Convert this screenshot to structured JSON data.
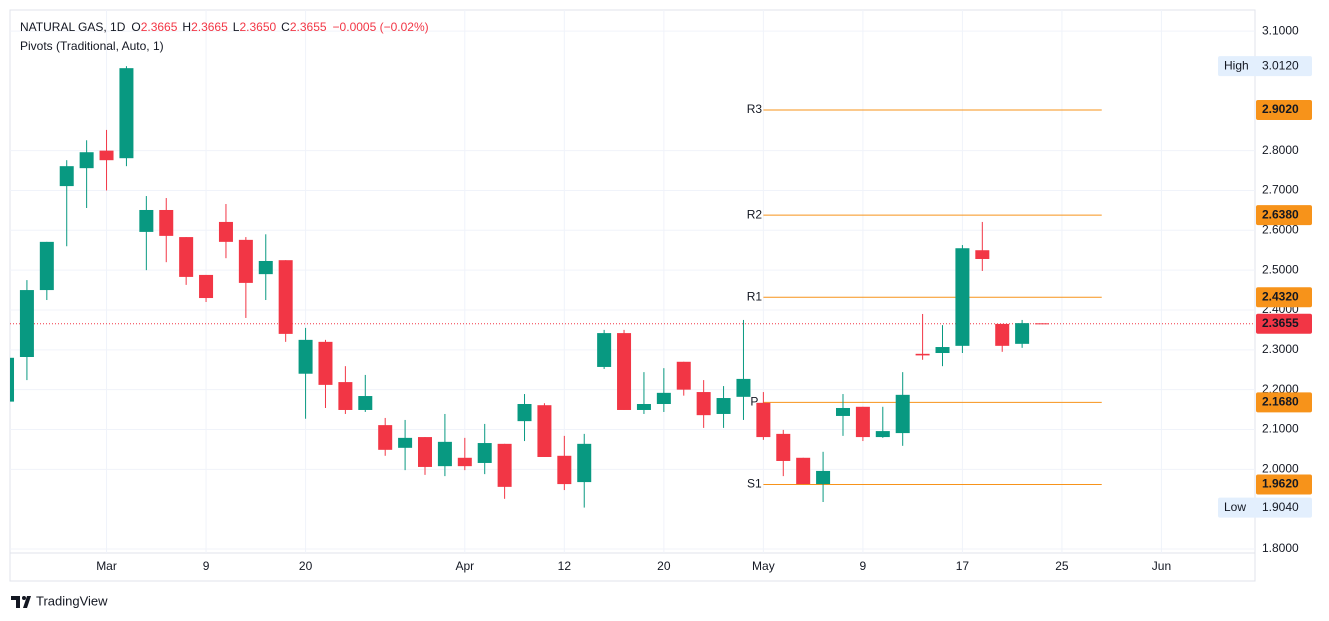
{
  "chart_data": {
    "type": "candlestick",
    "title": "NATURAL GAS, 1D",
    "ohlc_legend": [
      {
        "label": "O",
        "value": "2.3665"
      },
      {
        "label": "H",
        "value": "2.3665"
      },
      {
        "label": "L",
        "value": "2.3650"
      },
      {
        "label": "C",
        "value": "2.3655"
      }
    ],
    "change": "−0.0005 (−0.02%)",
    "indicator": "Pivots (Traditional, Auto, 1)",
    "up_color": "#089981",
    "down_color": "#f23645",
    "open": [
      2.17,
      2.282,
      2.45,
      2.711,
      2.756,
      2.8,
      2.781,
      2.596,
      2.651,
      2.583,
      2.488,
      2.621,
      2.576,
      2.49,
      2.525,
      2.24,
      2.32,
      2.219,
      2.149,
      2.111,
      2.054,
      2.081,
      2.008,
      2.029,
      2.016,
      2.064,
      2.121,
      2.161,
      2.034,
      1.968,
      2.257,
      2.342,
      2.149,
      2.164,
      2.27,
      2.194,
      2.139,
      2.182,
      2.167,
      2.089,
      2.029,
      1.963,
      2.134,
      2.157,
      2.081,
      2.091,
      2.29,
      2.292,
      2.31,
      2.55,
      2.365,
      2.315,
      2.3665
    ],
    "high": [
      2.3,
      2.475,
      2.571,
      2.776,
      2.826,
      2.852,
      3.012,
      2.686,
      2.681,
      2.583,
      2.488,
      2.666,
      2.583,
      2.59,
      2.525,
      2.355,
      2.325,
      2.259,
      2.237,
      2.129,
      2.124,
      2.081,
      2.139,
      2.079,
      2.114,
      2.064,
      2.189,
      2.166,
      2.084,
      2.089,
      2.35,
      2.35,
      2.244,
      2.254,
      2.27,
      2.224,
      2.209,
      2.375,
      2.194,
      2.099,
      2.029,
      2.044,
      2.189,
      2.157,
      2.157,
      2.244,
      2.39,
      2.362,
      2.563,
      2.621,
      2.365,
      2.375,
      2.3665
    ],
    "low": [
      2.15,
      2.224,
      2.425,
      2.56,
      2.656,
      2.7,
      2.761,
      2.5,
      2.52,
      2.463,
      2.42,
      2.53,
      2.38,
      2.425,
      2.32,
      2.127,
      2.154,
      2.139,
      2.144,
      2.034,
      1.998,
      1.986,
      1.983,
      1.998,
      1.988,
      1.926,
      2.071,
      2.031,
      1.948,
      1.904,
      2.252,
      2.149,
      2.139,
      2.144,
      2.185,
      2.104,
      2.104,
      2.124,
      2.074,
      1.983,
      1.963,
      1.918,
      2.084,
      2.071,
      2.079,
      2.059,
      2.275,
      2.259,
      2.292,
      2.498,
      2.295,
      2.305,
      2.365
    ],
    "close": [
      2.28,
      2.45,
      2.571,
      2.761,
      2.796,
      2.776,
      3.007,
      2.651,
      2.586,
      2.483,
      2.43,
      2.571,
      2.468,
      2.523,
      2.34,
      2.325,
      2.212,
      2.149,
      2.184,
      2.049,
      2.079,
      2.006,
      2.069,
      2.008,
      2.066,
      1.956,
      2.164,
      2.031,
      1.963,
      2.064,
      2.342,
      2.149,
      2.164,
      2.192,
      2.2,
      2.136,
      2.179,
      2.227,
      2.081,
      2.021,
      1.963,
      1.996,
      2.154,
      2.081,
      2.096,
      2.187,
      2.286,
      2.307,
      2.555,
      2.528,
      2.31,
      2.367,
      2.3655
    ],
    "xlim": [
      0.15,
      62.7
    ],
    "xticks": [
      {
        "value": 5,
        "label": "Mar"
      },
      {
        "value": 10,
        "label": "9"
      },
      {
        "value": 15,
        "label": "20"
      },
      {
        "value": 23,
        "label": "Apr"
      },
      {
        "value": 28,
        "label": "12"
      },
      {
        "value": 33,
        "label": "20"
      },
      {
        "value": 38,
        "label": "May"
      },
      {
        "value": 43,
        "label": "9"
      },
      {
        "value": 48,
        "label": "17"
      },
      {
        "value": 53,
        "label": "25"
      },
      {
        "value": 58,
        "label": "Jun"
      }
    ],
    "ylim": [
      1.79,
      3.153
    ],
    "yticks": [
      {
        "value": 3.1,
        "label": "3.1000"
      },
      {
        "value": 2.8,
        "label": "2.8000"
      },
      {
        "value": 2.7,
        "label": "2.7000"
      },
      {
        "value": 2.6,
        "label": "2.6000"
      },
      {
        "value": 2.5,
        "label": "2.5000"
      },
      {
        "value": 2.4,
        "label": "2.4000"
      },
      {
        "value": 2.3,
        "label": "2.3000"
      },
      {
        "value": 2.2,
        "label": "2.2000"
      },
      {
        "value": 2.1,
        "label": "2.1000"
      },
      {
        "value": 2.0,
        "label": "2.0000"
      },
      {
        "value": 1.8,
        "label": "1.8000"
      }
    ],
    "grid": true,
    "pivot_color": "#f7931a",
    "pivot_x": [
      38,
      55
    ],
    "pivots": [
      {
        "name": "R3",
        "value": 2.902,
        "value_label": "2.9020"
      },
      {
        "name": "R2",
        "value": 2.638,
        "value_label": "2.6380"
      },
      {
        "name": "R1",
        "value": 2.432,
        "value_label": "2.4320"
      },
      {
        "name": "P",
        "value": 2.168,
        "value_label": "2.1680"
      },
      {
        "name": "S1",
        "value": 1.962,
        "value_label": "1.9620"
      }
    ],
    "last_price": {
      "value": 2.3655,
      "label": "2.3655"
    },
    "high_marker": {
      "name": "High",
      "value": 3.012,
      "label": "3.0120"
    },
    "low_marker": {
      "name": "Low",
      "value": 1.904,
      "label": "1.9040"
    },
    "brand": "TradingView"
  }
}
